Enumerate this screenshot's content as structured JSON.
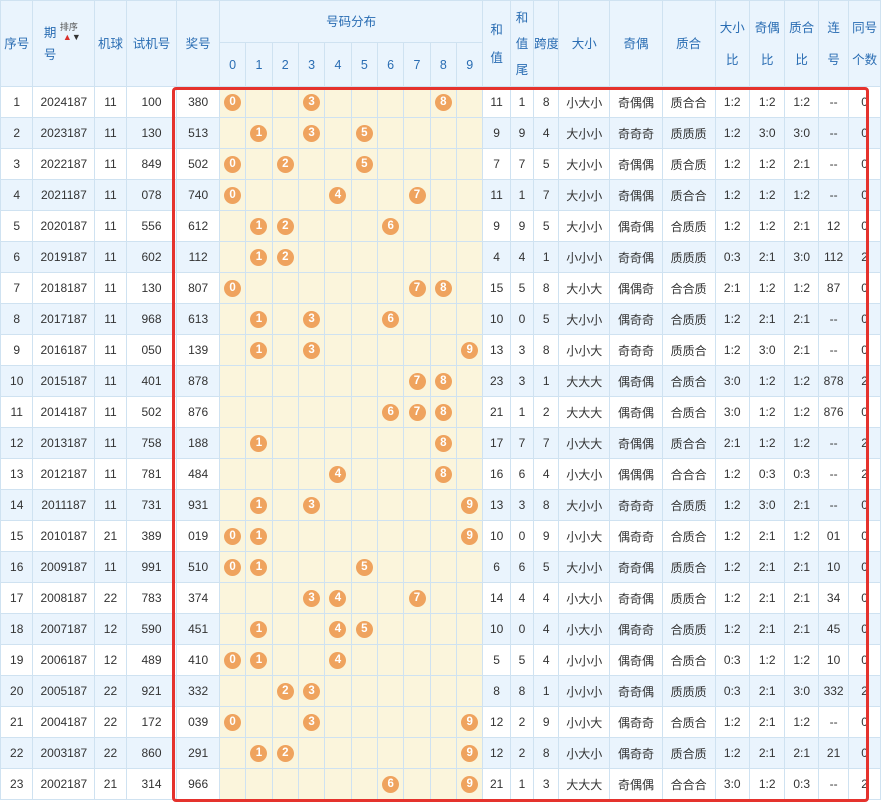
{
  "header": {
    "seq": "序号",
    "period": "期号",
    "period_top": "期",
    "period_bottom": "号",
    "sort_label": "排序",
    "machine": "机球",
    "trial": "试机号",
    "prize": "奖号",
    "distribution": "号码分布",
    "digits": [
      "0",
      "1",
      "2",
      "3",
      "4",
      "5",
      "6",
      "7",
      "8",
      "9"
    ],
    "sum_top": "和",
    "sum_bottom": "值",
    "sum_tail_top": "和",
    "sum_tail_mid": "值",
    "sum_tail_bottom": "尾",
    "span_top": "跨",
    "span_bottom": "度",
    "big_small": "大小",
    "odd_even": "奇偶",
    "prime_comp": "质合",
    "bs_ratio_top": "大小",
    "bs_ratio_bottom": "比",
    "oe_ratio_top": "奇偶",
    "oe_ratio_bottom": "比",
    "pc_ratio_top": "质合",
    "pc_ratio_bottom": "比",
    "consec_top": "连",
    "consec_bottom": "号",
    "same_top": "同号",
    "same_bottom": "个数"
  },
  "rows": [
    {
      "seq": "1",
      "period": "2024187",
      "machine": "11",
      "trial": "100",
      "prize": "380",
      "balls": [
        "0",
        "3",
        "8"
      ],
      "sum": "11",
      "tail": "1",
      "span": "8",
      "bs": "小大小",
      "oe": "奇偶偶",
      "pc": "质合合",
      "bsr": "1:2",
      "oer": "1:2",
      "pcr": "1:2",
      "consec": "--",
      "same": "0"
    },
    {
      "seq": "2",
      "period": "2023187",
      "machine": "11",
      "trial": "130",
      "prize": "513",
      "balls": [
        "1",
        "3",
        "5"
      ],
      "sum": "9",
      "tail": "9",
      "span": "4",
      "bs": "大小小",
      "oe": "奇奇奇",
      "pc": "质质质",
      "bsr": "1:2",
      "oer": "3:0",
      "pcr": "3:0",
      "consec": "--",
      "same": "0"
    },
    {
      "seq": "3",
      "period": "2022187",
      "machine": "11",
      "trial": "849",
      "prize": "502",
      "balls": [
        "0",
        "2",
        "5"
      ],
      "sum": "7",
      "tail": "7",
      "span": "5",
      "bs": "大小小",
      "oe": "奇偶偶",
      "pc": "质合质",
      "bsr": "1:2",
      "oer": "1:2",
      "pcr": "2:1",
      "consec": "--",
      "same": "0"
    },
    {
      "seq": "4",
      "period": "2021187",
      "machine": "11",
      "trial": "078",
      "prize": "740",
      "balls": [
        "0",
        "4",
        "7"
      ],
      "sum": "11",
      "tail": "1",
      "span": "7",
      "bs": "大小小",
      "oe": "奇偶偶",
      "pc": "质合合",
      "bsr": "1:2",
      "oer": "1:2",
      "pcr": "1:2",
      "consec": "--",
      "same": "0"
    },
    {
      "seq": "5",
      "period": "2020187",
      "machine": "11",
      "trial": "556",
      "prize": "612",
      "balls": [
        "1",
        "2",
        "6"
      ],
      "sum": "9",
      "tail": "9",
      "span": "5",
      "bs": "大小小",
      "oe": "偶奇偶",
      "pc": "合质质",
      "bsr": "1:2",
      "oer": "1:2",
      "pcr": "2:1",
      "consec": "12",
      "same": "0"
    },
    {
      "seq": "6",
      "period": "2019187",
      "machine": "11",
      "trial": "602",
      "prize": "112",
      "balls": [
        "1",
        "2"
      ],
      "sum": "4",
      "tail": "4",
      "span": "1",
      "bs": "小小小",
      "oe": "奇奇偶",
      "pc": "质质质",
      "bsr": "0:3",
      "oer": "2:1",
      "pcr": "3:0",
      "consec": "112",
      "same": "2"
    },
    {
      "seq": "7",
      "period": "2018187",
      "machine": "11",
      "trial": "130",
      "prize": "807",
      "balls": [
        "0",
        "7",
        "8"
      ],
      "sum": "15",
      "tail": "5",
      "span": "8",
      "bs": "大小大",
      "oe": "偶偶奇",
      "pc": "合合质",
      "bsr": "2:1",
      "oer": "1:2",
      "pcr": "1:2",
      "consec": "87",
      "same": "0"
    },
    {
      "seq": "8",
      "period": "2017187",
      "machine": "11",
      "trial": "968",
      "prize": "613",
      "balls": [
        "1",
        "3",
        "6"
      ],
      "sum": "10",
      "tail": "0",
      "span": "5",
      "bs": "大小小",
      "oe": "偶奇奇",
      "pc": "合质质",
      "bsr": "1:2",
      "oer": "2:1",
      "pcr": "2:1",
      "consec": "--",
      "same": "0"
    },
    {
      "seq": "9",
      "period": "2016187",
      "machine": "11",
      "trial": "050",
      "prize": "139",
      "balls": [
        "1",
        "3",
        "9"
      ],
      "sum": "13",
      "tail": "3",
      "span": "8",
      "bs": "小小大",
      "oe": "奇奇奇",
      "pc": "质质合",
      "bsr": "1:2",
      "oer": "3:0",
      "pcr": "2:1",
      "consec": "--",
      "same": "0"
    },
    {
      "seq": "10",
      "period": "2015187",
      "machine": "11",
      "trial": "401",
      "prize": "878",
      "balls": [
        "7",
        "8"
      ],
      "sum": "23",
      "tail": "3",
      "span": "1",
      "bs": "大大大",
      "oe": "偶奇偶",
      "pc": "合质合",
      "bsr": "3:0",
      "oer": "1:2",
      "pcr": "1:2",
      "consec": "878",
      "same": "2"
    },
    {
      "seq": "11",
      "period": "2014187",
      "machine": "11",
      "trial": "502",
      "prize": "876",
      "balls": [
        "6",
        "7",
        "8"
      ],
      "sum": "21",
      "tail": "1",
      "span": "2",
      "bs": "大大大",
      "oe": "偶奇偶",
      "pc": "合质合",
      "bsr": "3:0",
      "oer": "1:2",
      "pcr": "1:2",
      "consec": "876",
      "same": "0"
    },
    {
      "seq": "12",
      "period": "2013187",
      "machine": "11",
      "trial": "758",
      "prize": "188",
      "balls": [
        "1",
        "8"
      ],
      "sum": "17",
      "tail": "7",
      "span": "7",
      "bs": "小大大",
      "oe": "奇偶偶",
      "pc": "质合合",
      "bsr": "2:1",
      "oer": "1:2",
      "pcr": "1:2",
      "consec": "--",
      "same": "2"
    },
    {
      "seq": "13",
      "period": "2012187",
      "machine": "11",
      "trial": "781",
      "prize": "484",
      "balls": [
        "4",
        "8"
      ],
      "sum": "16",
      "tail": "6",
      "span": "4",
      "bs": "小大小",
      "oe": "偶偶偶",
      "pc": "合合合",
      "bsr": "1:2",
      "oer": "0:3",
      "pcr": "0:3",
      "consec": "--",
      "same": "2"
    },
    {
      "seq": "14",
      "period": "2011187",
      "machine": "11",
      "trial": "731",
      "prize": "931",
      "balls": [
        "1",
        "3",
        "9"
      ],
      "sum": "13",
      "tail": "3",
      "span": "8",
      "bs": "大小小",
      "oe": "奇奇奇",
      "pc": "合质质",
      "bsr": "1:2",
      "oer": "3:0",
      "pcr": "2:1",
      "consec": "--",
      "same": "0"
    },
    {
      "seq": "15",
      "period": "2010187",
      "machine": "21",
      "trial": "389",
      "prize": "019",
      "balls": [
        "0",
        "1",
        "9"
      ],
      "sum": "10",
      "tail": "0",
      "span": "9",
      "bs": "小小大",
      "oe": "偶奇奇",
      "pc": "合质合",
      "bsr": "1:2",
      "oer": "2:1",
      "pcr": "1:2",
      "consec": "01",
      "same": "0"
    },
    {
      "seq": "16",
      "period": "2009187",
      "machine": "11",
      "trial": "991",
      "prize": "510",
      "balls": [
        "0",
        "1",
        "5"
      ],
      "sum": "6",
      "tail": "6",
      "span": "5",
      "bs": "大小小",
      "oe": "奇奇偶",
      "pc": "质质合",
      "bsr": "1:2",
      "oer": "2:1",
      "pcr": "2:1",
      "consec": "10",
      "same": "0"
    },
    {
      "seq": "17",
      "period": "2008187",
      "machine": "22",
      "trial": "783",
      "prize": "374",
      "balls": [
        "3",
        "4",
        "7"
      ],
      "sum": "14",
      "tail": "4",
      "span": "4",
      "bs": "小大小",
      "oe": "奇奇偶",
      "pc": "质质合",
      "bsr": "1:2",
      "oer": "2:1",
      "pcr": "2:1",
      "consec": "34",
      "same": "0"
    },
    {
      "seq": "18",
      "period": "2007187",
      "machine": "12",
      "trial": "590",
      "prize": "451",
      "balls": [
        "1",
        "4",
        "5"
      ],
      "sum": "10",
      "tail": "0",
      "span": "4",
      "bs": "小大小",
      "oe": "偶奇奇",
      "pc": "合质质",
      "bsr": "1:2",
      "oer": "2:1",
      "pcr": "2:1",
      "consec": "45",
      "same": "0"
    },
    {
      "seq": "19",
      "period": "2006187",
      "machine": "12",
      "trial": "489",
      "prize": "410",
      "balls": [
        "0",
        "1",
        "4"
      ],
      "sum": "5",
      "tail": "5",
      "span": "4",
      "bs": "小小小",
      "oe": "偶奇偶",
      "pc": "合质合",
      "bsr": "0:3",
      "oer": "1:2",
      "pcr": "1:2",
      "consec": "10",
      "same": "0"
    },
    {
      "seq": "20",
      "period": "2005187",
      "machine": "22",
      "trial": "921",
      "prize": "332",
      "balls": [
        "2",
        "3"
      ],
      "sum": "8",
      "tail": "8",
      "span": "1",
      "bs": "小小小",
      "oe": "奇奇偶",
      "pc": "质质质",
      "bsr": "0:3",
      "oer": "2:1",
      "pcr": "3:0",
      "consec": "332",
      "same": "2"
    },
    {
      "seq": "21",
      "period": "2004187",
      "machine": "22",
      "trial": "172",
      "prize": "039",
      "balls": [
        "0",
        "3",
        "9"
      ],
      "sum": "12",
      "tail": "2",
      "span": "9",
      "bs": "小小大",
      "oe": "偶奇奇",
      "pc": "合质合",
      "bsr": "1:2",
      "oer": "2:1",
      "pcr": "1:2",
      "consec": "--",
      "same": "0"
    },
    {
      "seq": "22",
      "period": "2003187",
      "machine": "22",
      "trial": "860",
      "prize": "291",
      "balls": [
        "1",
        "2",
        "9"
      ],
      "sum": "12",
      "tail": "2",
      "span": "8",
      "bs": "小大小",
      "oe": "偶奇奇",
      "pc": "质合质",
      "bsr": "1:2",
      "oer": "2:1",
      "pcr": "2:1",
      "consec": "21",
      "same": "0"
    },
    {
      "seq": "23",
      "period": "2002187",
      "machine": "21",
      "trial": "314",
      "prize": "966",
      "balls": [
        "6",
        "9"
      ],
      "sum": "21",
      "tail": "1",
      "span": "3",
      "bs": "大大大",
      "oe": "奇偶偶",
      "pc": "合合合",
      "bsr": "3:0",
      "oer": "1:2",
      "pcr": "0:3",
      "consec": "--",
      "same": "2"
    }
  ],
  "colors": {
    "header_text": "#2a6db3",
    "header_bg": "#eaf4fd",
    "ball": "#efa35e",
    "distribution_bg": "#fbf5dc",
    "highlight_border": "#e5322d"
  }
}
